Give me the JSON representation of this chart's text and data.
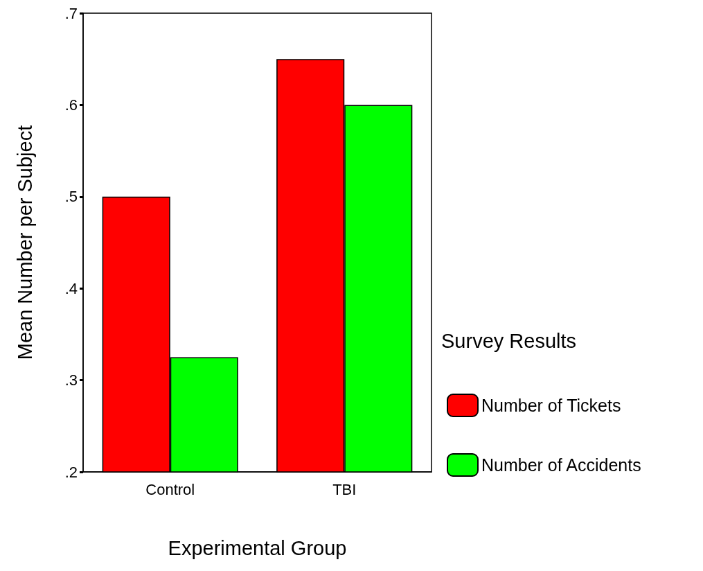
{
  "chart_data": {
    "type": "bar",
    "xlabel": "Experimental Group",
    "ylabel": "Mean Number per Subject",
    "legend_title": "Survey Results",
    "categories": [
      "Control",
      "TBI"
    ],
    "series": [
      {
        "name": "Number of Tickets",
        "color": "#ff0000",
        "values": [
          0.5,
          0.65
        ]
      },
      {
        "name": "Number of Accidents",
        "color": "#00ff00",
        "values": [
          0.325,
          0.6
        ]
      }
    ],
    "ylim": [
      0.2,
      0.7
    ],
    "yticks": [
      {
        "value": 0.2,
        "label": ".2"
      },
      {
        "value": 0.3,
        "label": ".3"
      },
      {
        "value": 0.4,
        "label": ".4"
      },
      {
        "value": 0.5,
        "label": ".5"
      },
      {
        "value": 0.6,
        "label": ".6"
      },
      {
        "value": 0.7,
        "label": ".7"
      }
    ],
    "grid": false,
    "legend": "right"
  }
}
